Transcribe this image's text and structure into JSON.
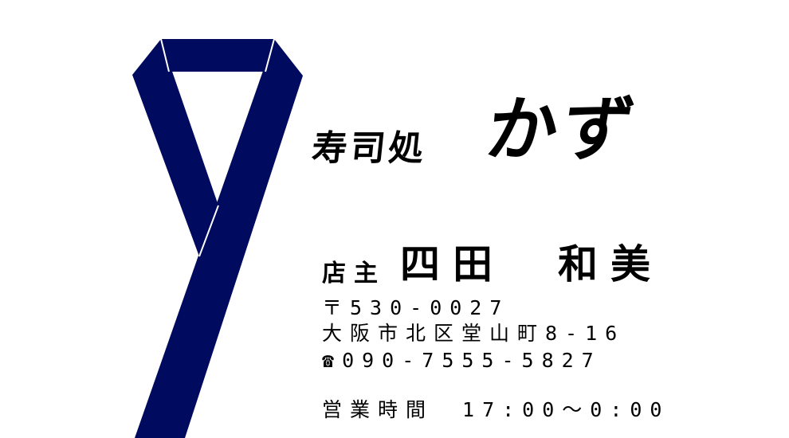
{
  "shop": {
    "prefix": "寿司処",
    "name": "かず"
  },
  "owner": {
    "role": "店主",
    "name": "四田　和美"
  },
  "contact": {
    "postal": "〒530-0027",
    "address": "大阪市北区堂山町8-16",
    "phone_icon": "telephone-icon",
    "phone_symbol": "☎",
    "phone": "090-7555-5827"
  },
  "hours": {
    "label": "営業時間",
    "value": "17:00～0:00"
  },
  "colors": {
    "ribbon": "#000a5e",
    "background": "#ffffff",
    "text": "#000000"
  }
}
